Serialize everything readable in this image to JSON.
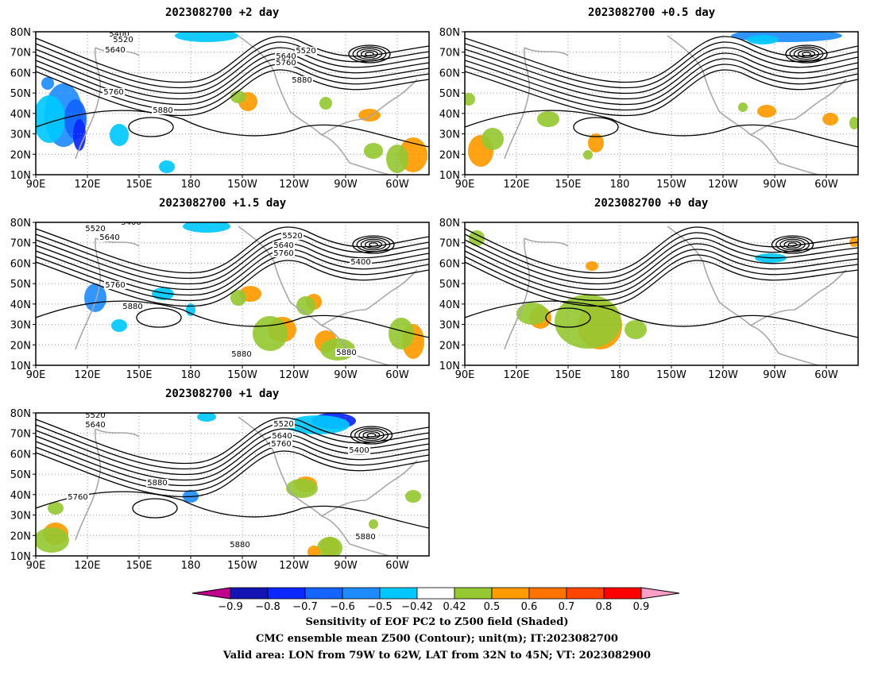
{
  "panels": [
    {
      "id": "p1",
      "title": "2023082700 +2 day",
      "contour_labels": [
        "5400",
        "5520",
        "5640",
        "5520",
        "5640",
        "5760",
        "5880",
        "5760",
        "5880"
      ]
    },
    {
      "id": "p2",
      "title": "2023082700 +0.5 day",
      "contour_labels": [
        "5520",
        "5640",
        "5520",
        "5640",
        "5760",
        "5400",
        "5760",
        "5880",
        "5880"
      ]
    },
    {
      "id": "p3",
      "title": "2023082700 +1.5 day",
      "contour_labels": [
        "5400",
        "5520",
        "5640",
        "5520",
        "5640",
        "5760",
        "5400",
        "5760",
        "5880",
        "5880",
        "5880"
      ]
    },
    {
      "id": "p4",
      "title": "2023082700 +0 day",
      "contour_labels": [
        "5640",
        "5520",
        "5640",
        "5760",
        "5760",
        "5880",
        "5880",
        "5880"
      ]
    },
    {
      "id": "p5",
      "title": "2023082700 +1 day",
      "contour_labels": [
        "5520",
        "5640",
        "5520",
        "5640",
        "5760",
        "5400",
        "5880",
        "5760",
        "5880",
        "5880"
      ]
    }
  ],
  "axes": {
    "lat_labels": [
      "80N",
      "70N",
      "60N",
      "50N",
      "40N",
      "30N",
      "20N",
      "10N"
    ],
    "lon_labels": [
      "90E",
      "120E",
      "150E",
      "180",
      "150W",
      "120W",
      "90W",
      "60W"
    ]
  },
  "colorbar": {
    "colors": [
      "#c0008c",
      "#1414b4",
      "#0a28ff",
      "#1464ff",
      "#1e8cff",
      "#00c8ff",
      "#ffffff",
      "#96c832",
      "#ff9b00",
      "#ff7300",
      "#ff4600",
      "#ff0000",
      "#ff9ec8"
    ],
    "labels": [
      "−0.9",
      "−0.8",
      "−0.7",
      "−0.6",
      "−0.5",
      "−0.42",
      "0.42",
      "0.5",
      "0.6",
      "0.7",
      "0.8",
      "0.9"
    ]
  },
  "footer": {
    "line1": "Sensitivity of EOF PC2 to Z500 field (Shaded)",
    "line2": "CMC ensemble mean Z500 (Contour); unit(m); IT:2023082700",
    "line3": "Valid area: LON from 79W to 62W, LAT from 32N to 45N; VT: 2023082900"
  }
}
